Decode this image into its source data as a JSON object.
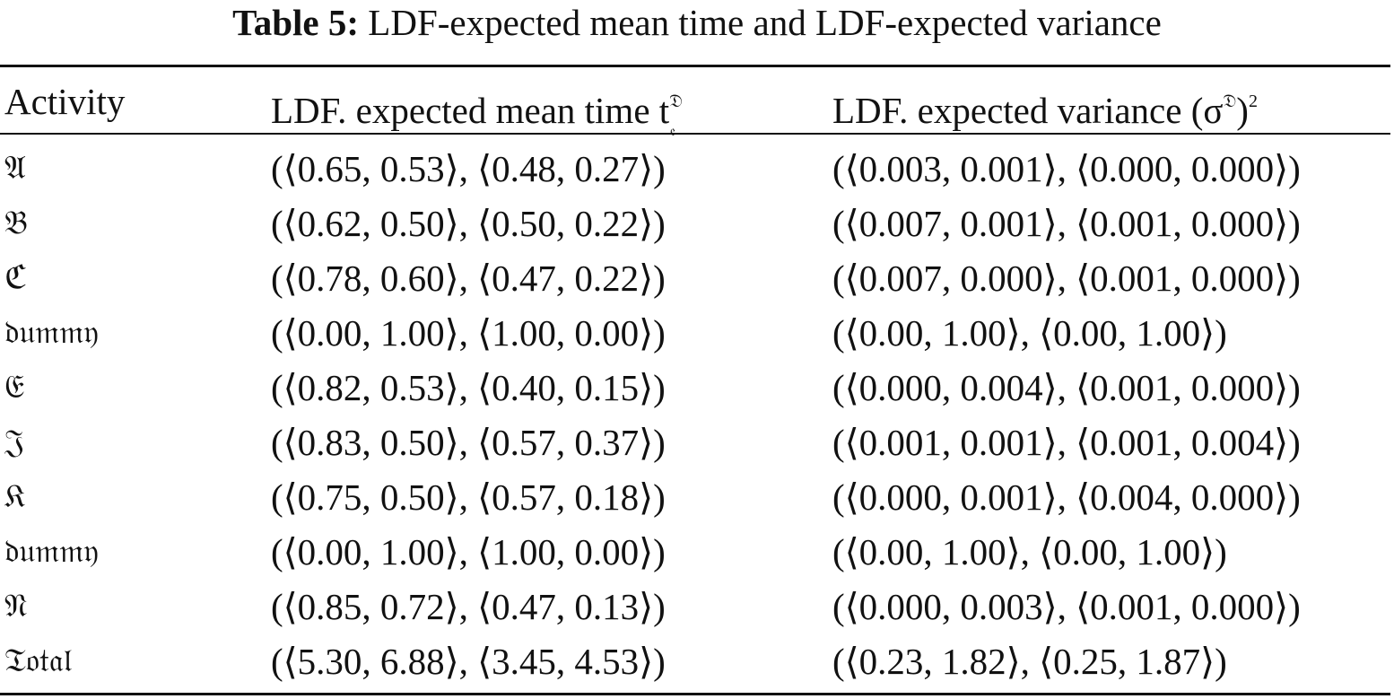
{
  "caption": {
    "label": "Table 5:",
    "text": "LDF-expected mean time and LDF-expected variance"
  },
  "table": {
    "header": [
      "Activity",
      {
        "main": "LDF. expected mean time t",
        "sup": "𝔇",
        "sub": "𝔢"
      },
      {
        "main": "LDF. expected variance (σ",
        "sup": "𝔇",
        "tail": ")",
        "power": "2"
      }
    ],
    "rows": [
      [
        "𝔄",
        "(⟨0.65, 0.53⟩, ⟨0.48, 0.27⟩)",
        "(⟨0.003, 0.001⟩, ⟨0.000, 0.000⟩)"
      ],
      [
        "𝔅",
        "(⟨0.62, 0.50⟩, ⟨0.50, 0.22⟩)",
        "(⟨0.007, 0.001⟩, ⟨0.001, 0.000⟩)"
      ],
      [
        "ℭ",
        "(⟨0.78, 0.60⟩, ⟨0.47, 0.22⟩)",
        "(⟨0.007, 0.000⟩, ⟨0.001, 0.000⟩)"
      ],
      [
        "𝔡𝔲𝔪𝔪𝔶",
        "(⟨0.00, 1.00⟩, ⟨1.00, 0.00⟩)",
        "(⟨0.00, 1.00⟩, ⟨0.00, 1.00⟩)"
      ],
      [
        "𝔈",
        "(⟨0.82, 0.53⟩, ⟨0.40, 0.15⟩)",
        "(⟨0.000, 0.004⟩, ⟨0.001, 0.000⟩)"
      ],
      [
        "𝔍",
        "(⟨0.83, 0.50⟩, ⟨0.57, 0.37⟩)",
        "(⟨0.001, 0.001⟩, ⟨0.001, 0.004⟩)"
      ],
      [
        "𝔎",
        "(⟨0.75, 0.50⟩, ⟨0.57, 0.18⟩)",
        "(⟨0.000, 0.001⟩, ⟨0.004, 0.000⟩)"
      ],
      [
        "𝔡𝔲𝔪𝔪𝔶",
        "(⟨0.00, 1.00⟩, ⟨1.00, 0.00⟩)",
        "(⟨0.00, 1.00⟩, ⟨0.00, 1.00⟩)"
      ],
      [
        "𝔑",
        "(⟨0.85, 0.72⟩, ⟨0.47, 0.13⟩)",
        "(⟨0.000, 0.003⟩, ⟨0.001, 0.000⟩)"
      ],
      [
        "𝔗𝔬𝔱𝔞𝔩",
        "(⟨5.30, 6.88⟩, ⟨3.45, 4.53⟩)",
        "(⟨0.23, 1.82⟩, ⟨0.25, 1.87⟩)"
      ]
    ]
  }
}
